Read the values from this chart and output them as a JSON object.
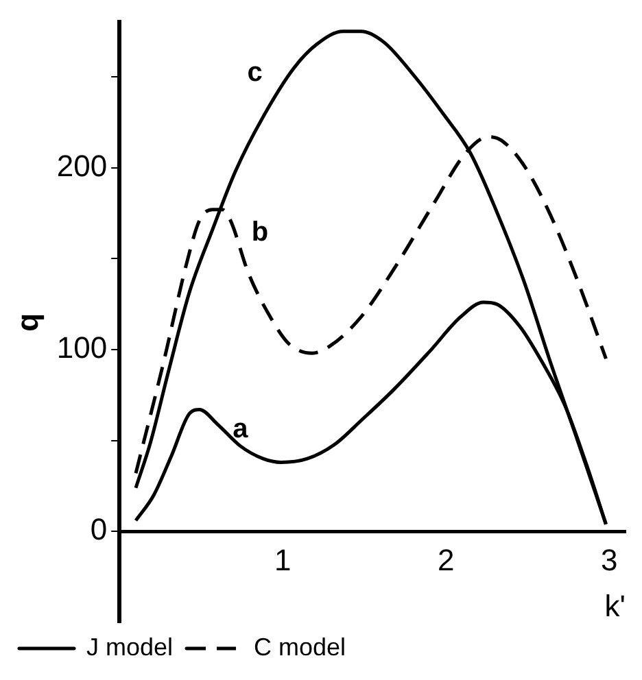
{
  "chart_data": {
    "type": "line",
    "xlabel": "k'",
    "ylabel": "q",
    "xlim": [
      0,
      3.1
    ],
    "ylim": [
      -50,
      280
    ],
    "xticks": [
      1,
      2,
      3
    ],
    "yticks": [
      0,
      {
        "value": 50,
        "label": null
      },
      100,
      {
        "value": 150,
        "label": null
      },
      200,
      {
        "value": 250,
        "label": null
      }
    ],
    "grid": false,
    "legend": "bottom left",
    "marker": "none",
    "series": [
      {
        "name": "J model",
        "color": "#000000",
        "line_style": "solid",
        "x": [
          0.1,
          0.21,
          0.32,
          0.43,
          0.49,
          0.6,
          0.74,
          0.88,
          0.99,
          1.15,
          1.32,
          1.48,
          1.68,
          1.9,
          2.09,
          2.23,
          2.31,
          2.45,
          2.59,
          2.73,
          2.86,
          2.98
        ],
        "values": [
          6,
          20,
          42,
          65,
          67,
          59,
          47,
          40,
          38,
          40,
          48,
          61,
          78,
          99,
          118,
          126,
          125,
          113,
          93,
          69,
          37,
          4
        ]
      },
      {
        "color": "#000000",
        "line_style": "solid",
        "x": [
          0.1,
          0.19,
          0.3,
          0.43,
          0.57,
          0.71,
          0.88,
          1.07,
          1.21,
          1.37,
          1.48,
          1.62,
          1.81,
          1.98,
          2.15,
          2.31,
          2.48,
          2.64,
          2.81,
          2.98
        ],
        "values": [
          24,
          49,
          88,
          132,
          166,
          198,
          228,
          255,
          268,
          275,
          275,
          269,
          250,
          230,
          208,
          176,
          137,
          93,
          49,
          4
        ]
      },
      {
        "name": "C model",
        "color": "#000000",
        "line_style": "dashed",
        "x": [
          0.1,
          0.27,
          0.41,
          0.49,
          0.57,
          0.63,
          0.68,
          0.79,
          0.93,
          1.04,
          1.18,
          1.29,
          1.48,
          1.7,
          1.93,
          2.12,
          2.26,
          2.34,
          2.48,
          2.64,
          2.81,
          2.98
        ],
        "values": [
          32,
          93,
          147,
          171,
          177,
          177,
          171,
          142,
          117,
          103,
          98,
          102,
          118,
          147,
          181,
          208,
          217,
          215,
          201,
          174,
          137,
          95
        ]
      }
    ],
    "annotations": [
      "a",
      "b",
      "c"
    ]
  }
}
